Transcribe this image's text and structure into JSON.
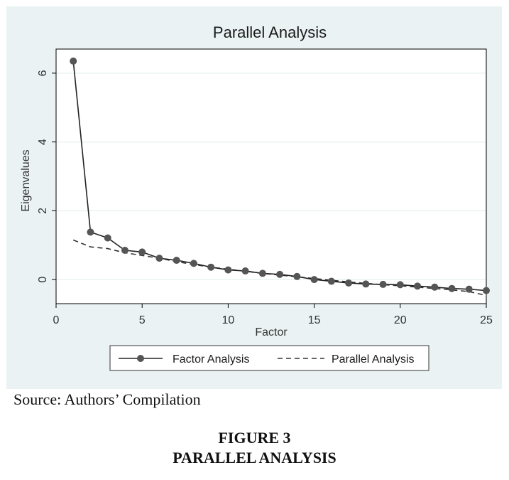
{
  "chart_data": {
    "type": "line",
    "title": "Parallel Analysis",
    "xlabel": "Factor",
    "ylabel": "Eigenvalues",
    "xlim": [
      0,
      25
    ],
    "ylim": [
      -0.7,
      6.7
    ],
    "xticks": [
      0,
      5,
      10,
      15,
      20,
      25
    ],
    "yticks": [
      0,
      2,
      4,
      6
    ],
    "grid": true,
    "legend": "bottom",
    "x": [
      1,
      2,
      3,
      4,
      5,
      6,
      7,
      8,
      9,
      10,
      11,
      12,
      13,
      14,
      15,
      16,
      17,
      18,
      19,
      20,
      21,
      22,
      23,
      24,
      25
    ],
    "series": [
      {
        "name": "Factor Analysis",
        "style": "solid-with-markers",
        "color": "#555555",
        "values": [
          6.35,
          1.38,
          1.21,
          0.85,
          0.8,
          0.62,
          0.56,
          0.47,
          0.36,
          0.28,
          0.25,
          0.18,
          0.15,
          0.09,
          0.0,
          -0.05,
          -0.1,
          -0.13,
          -0.14,
          -0.15,
          -0.19,
          -0.22,
          -0.26,
          -0.28,
          -0.32
        ]
      },
      {
        "name": "Parallel Analysis",
        "style": "dashed",
        "color": "#333333",
        "values": [
          1.15,
          0.95,
          0.9,
          0.78,
          0.7,
          0.62,
          0.52,
          0.44,
          0.36,
          0.3,
          0.24,
          0.18,
          0.13,
          0.08,
          0.03,
          -0.02,
          -0.07,
          -0.11,
          -0.15,
          -0.18,
          -0.22,
          -0.26,
          -0.3,
          -0.35,
          -0.46
        ]
      }
    ]
  },
  "source_note": "Source: Authors’ Compilation",
  "figure": {
    "number": "FIGURE 3",
    "caption": "PARALLEL ANALYSIS"
  }
}
